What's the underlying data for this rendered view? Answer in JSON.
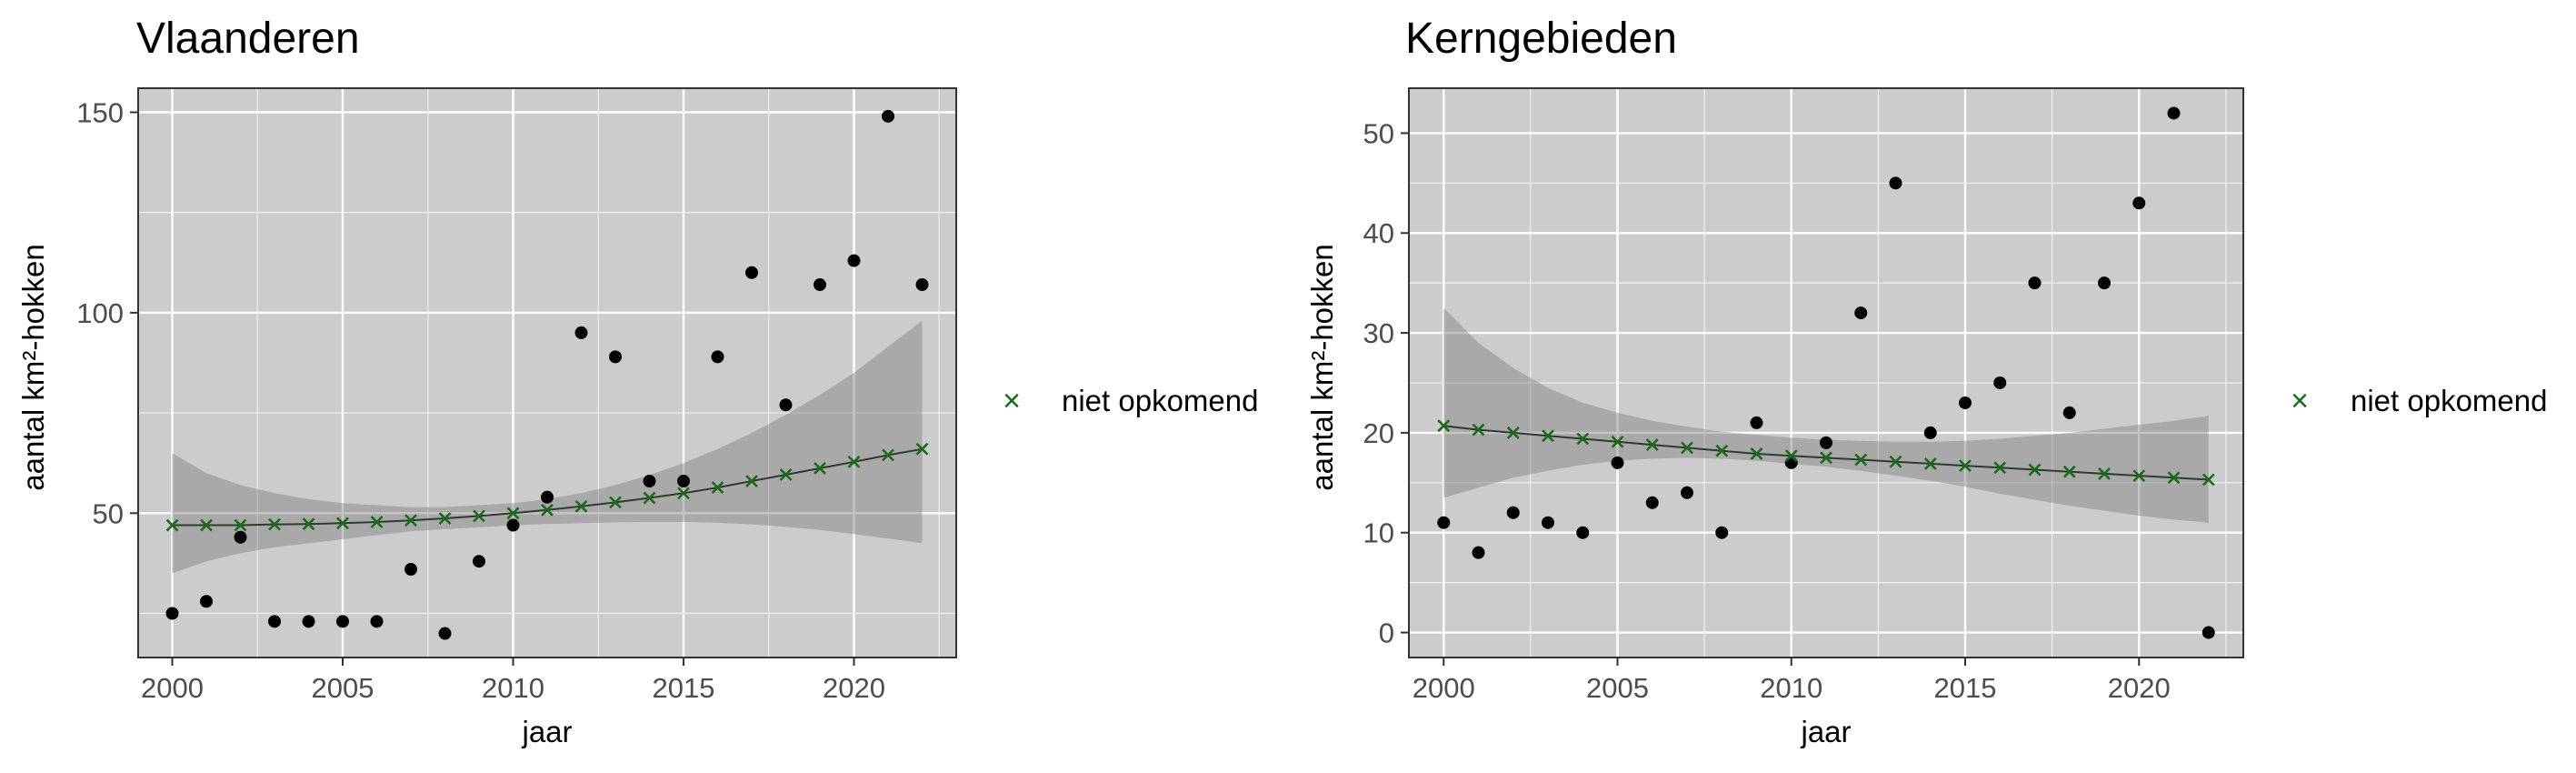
{
  "charts": [
    {
      "title": "Vlaanderen",
      "xlabel": "jaar",
      "ylabel": "aantal km²-hokken",
      "legend": {
        "placement": "right",
        "symbol": "×",
        "label": "niet opkomend"
      }
    },
    {
      "title": "Kerngebieden",
      "xlabel": "jaar",
      "ylabel": "aantal km²-hokken",
      "legend": {
        "placement": "right",
        "symbol": "×",
        "label": "niet opkomend"
      }
    }
  ],
  "colors": {
    "panel": "#cccccc",
    "grid": "#ffffff",
    "point": "#000000",
    "fit": "#1a6b1a",
    "ribbon": "#a3a3a3",
    "text": "#4d4d4d"
  },
  "chart_data": [
    {
      "type": "scatter",
      "title": "Vlaanderen",
      "xlabel": "jaar",
      "ylabel": "aantal km²-hokken",
      "xlim": [
        1999,
        2023
      ],
      "ylim": [
        14,
        156
      ],
      "xticks": [
        2000,
        2005,
        2010,
        2015,
        2020
      ],
      "yticks": [
        50,
        100,
        150
      ],
      "grid": true,
      "legend": "right",
      "observed": {
        "x": [
          2000,
          2001,
          2002,
          2003,
          2004,
          2005,
          2006,
          2007,
          2008,
          2009,
          2010,
          2011,
          2012,
          2013,
          2014,
          2015,
          2016,
          2017,
          2018,
          2019,
          2020,
          2021,
          2022
        ],
        "y": [
          25,
          28,
          44,
          23,
          23,
          23,
          23,
          36,
          20,
          38,
          47,
          54,
          95,
          89,
          58,
          58,
          89,
          110,
          77,
          107,
          113,
          149,
          107
        ]
      },
      "fit": {
        "name": "niet opkomend",
        "x": [
          2000,
          2001,
          2002,
          2003,
          2004,
          2005,
          2006,
          2007,
          2008,
          2009,
          2010,
          2011,
          2012,
          2013,
          2014,
          2015,
          2016,
          2017,
          2018,
          2019,
          2020,
          2021,
          2022
        ],
        "y": [
          47,
          47,
          47,
          47.2,
          47.3,
          47.5,
          47.8,
          48.2,
          48.7,
          49.3,
          50,
          50.8,
          51.7,
          52.7,
          53.8,
          55,
          56.4,
          58,
          59.6,
          61.2,
          62.8,
          64.5,
          66
        ],
        "lower": [
          35,
          38,
          40,
          41.5,
          42.5,
          43.5,
          44.5,
          45.5,
          46,
          46.5,
          47,
          47.3,
          47.5,
          47.7,
          47.8,
          47.8,
          47.6,
          47.2,
          46.6,
          45.8,
          44.8,
          43.7,
          42.5
        ],
        "upper": [
          65,
          60,
          57,
          55,
          53.5,
          52.5,
          52,
          51.5,
          51.5,
          52,
          52.5,
          53.5,
          55,
          57,
          59.5,
          62.5,
          66,
          70,
          74.5,
          79.5,
          85,
          91.5,
          98
        ]
      }
    },
    {
      "type": "scatter",
      "title": "Kerngebieden",
      "xlabel": "jaar",
      "ylabel": "aantal km²-hokken",
      "xlim": [
        1999,
        2023
      ],
      "ylim": [
        -2.5,
        54.5
      ],
      "xticks": [
        2000,
        2005,
        2010,
        2015,
        2020
      ],
      "yticks": [
        0,
        10,
        20,
        30,
        40,
        50
      ],
      "grid": true,
      "legend": "right",
      "observed": {
        "x": [
          2000,
          2001,
          2002,
          2003,
          2004,
          2005,
          2006,
          2007,
          2008,
          2009,
          2010,
          2011,
          2012,
          2013,
          2014,
          2015,
          2016,
          2017,
          2018,
          2019,
          2020,
          2021,
          2022
        ],
        "y": [
          11,
          8,
          12,
          11,
          10,
          17,
          13,
          14,
          10,
          21,
          17,
          19,
          32,
          45,
          20,
          23,
          25,
          35,
          22,
          35,
          43,
          52,
          0
        ]
      },
      "fit": {
        "name": "niet opkomend",
        "x": [
          2000,
          2001,
          2002,
          2003,
          2004,
          2005,
          2006,
          2007,
          2008,
          2009,
          2010,
          2011,
          2012,
          2013,
          2014,
          2015,
          2016,
          2017,
          2018,
          2019,
          2020,
          2021,
          2022
        ],
        "y": [
          20.7,
          20.3,
          20,
          19.7,
          19.4,
          19.1,
          18.8,
          18.5,
          18.2,
          17.9,
          17.7,
          17.5,
          17.3,
          17.1,
          16.9,
          16.7,
          16.5,
          16.3,
          16.1,
          15.9,
          15.7,
          15.5,
          15.3
        ],
        "lower": [
          13.5,
          14.5,
          15.5,
          16.2,
          16.8,
          17.2,
          17.4,
          17.5,
          17.4,
          17.2,
          16.9,
          16.6,
          16.2,
          15.7,
          15.2,
          14.6,
          13.9,
          13.3,
          12.7,
          12.2,
          11.7,
          11.3,
          11
        ],
        "upper": [
          32.5,
          29,
          26.5,
          24.5,
          23,
          22,
          21.2,
          20.6,
          20.1,
          19.8,
          19.5,
          19.3,
          19.2,
          19.1,
          19.1,
          19.2,
          19.4,
          19.7,
          20,
          20.4,
          20.8,
          21.2,
          21.7
        ]
      }
    }
  ]
}
